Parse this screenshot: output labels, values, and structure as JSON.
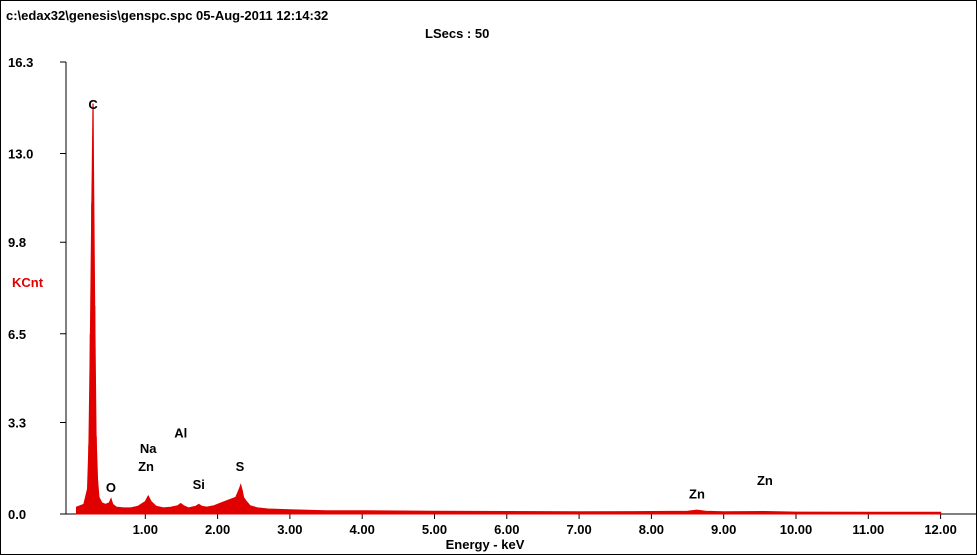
{
  "header": {
    "file_line": "c:\\edax32\\genesis\\genspc.spc  05-Aug-2011 12:14:32",
    "lsecs_line": "LSecs :  50"
  },
  "chart_data": {
    "type": "line",
    "title": "",
    "xlabel": "Energy - keV",
    "ylabel": "KCnt",
    "xlim": [
      0.0,
      12.0
    ],
    "ylim": [
      0.0,
      16.3
    ],
    "x_ticks": [
      "1.00",
      "2.00",
      "3.00",
      "4.00",
      "5.00",
      "6.00",
      "7.00",
      "8.00",
      "9.00",
      "10.00",
      "11.00",
      "12.00"
    ],
    "y_ticks": [
      "0.0",
      "3.3",
      "6.5",
      "9.8",
      "13.0",
      "16.3"
    ],
    "series_color": "#e00000",
    "label_color_ylabel": "#e00000",
    "series": [
      {
        "x": [
          0.05,
          0.1,
          0.15,
          0.2,
          0.22,
          0.24,
          0.26,
          0.277,
          0.3,
          0.32,
          0.34,
          0.36,
          0.4,
          0.45,
          0.5,
          0.525,
          0.55,
          0.6,
          0.7,
          0.8,
          0.9,
          1.0,
          1.04,
          1.08,
          1.15,
          1.25,
          1.35,
          1.45,
          1.49,
          1.53,
          1.6,
          1.7,
          1.74,
          1.78,
          1.85,
          1.95,
          2.05,
          2.15,
          2.25,
          2.3,
          2.32,
          2.34,
          2.36,
          2.4,
          2.45,
          2.55,
          2.7,
          3.0,
          3.5,
          4.0,
          5.0,
          6.0,
          7.0,
          8.0,
          8.5,
          8.63,
          8.75,
          9.0,
          9.57,
          9.75,
          10.0,
          11.0,
          12.0
        ],
        "y": [
          0.25,
          0.3,
          0.35,
          0.9,
          2.5,
          6.5,
          11.2,
          14.8,
          7.5,
          2.8,
          1.2,
          0.6,
          0.4,
          0.35,
          0.4,
          0.55,
          0.35,
          0.25,
          0.22,
          0.22,
          0.28,
          0.45,
          0.65,
          0.45,
          0.28,
          0.22,
          0.24,
          0.3,
          0.38,
          0.3,
          0.22,
          0.28,
          0.35,
          0.28,
          0.25,
          0.3,
          0.4,
          0.5,
          0.6,
          0.9,
          1.05,
          0.85,
          0.6,
          0.45,
          0.3,
          0.22,
          0.18,
          0.15,
          0.12,
          0.12,
          0.1,
          0.09,
          0.08,
          0.09,
          0.1,
          0.14,
          0.1,
          0.08,
          0.09,
          0.08,
          0.07,
          0.06,
          0.06
        ]
      }
    ],
    "peak_labels": [
      {
        "text": "C",
        "x": 0.277,
        "y": 14.6
      },
      {
        "text": "O",
        "x": 0.525,
        "y": 0.8
      },
      {
        "text": "Na",
        "x": 1.04,
        "y": 2.2
      },
      {
        "text": "Zn",
        "x": 1.01,
        "y": 1.55
      },
      {
        "text": "Al",
        "x": 1.49,
        "y": 2.75
      },
      {
        "text": "Si",
        "x": 1.74,
        "y": 0.9
      },
      {
        "text": "S",
        "x": 2.31,
        "y": 1.55
      },
      {
        "text": "Zn",
        "x": 8.63,
        "y": 0.55
      },
      {
        "text": "Zn",
        "x": 9.57,
        "y": 1.05
      }
    ]
  }
}
